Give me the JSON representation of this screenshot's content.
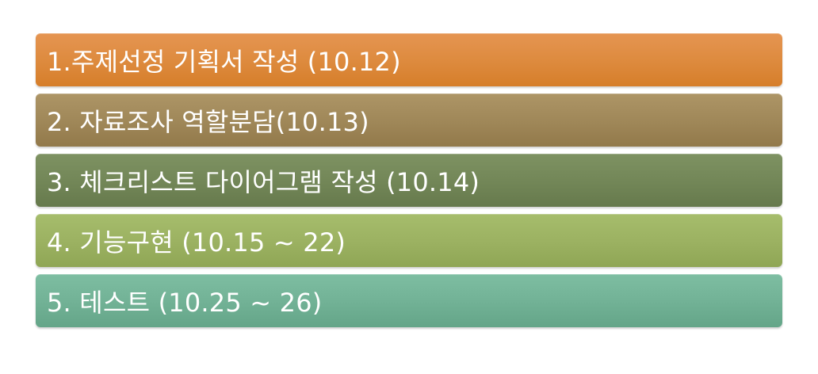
{
  "steps": [
    {
      "label": "1.주제선정 기획서 작성 (10.12)",
      "color": "#dd8a3d"
    },
    {
      "label": "2. 자료조사 역할분담(10.13)",
      "color": "#9f8758"
    },
    {
      "label": "3. 체크리스트 다이어그램 작성 (10.14)",
      "color": "#728657"
    },
    {
      "label": "4. 기능구현 (10.15 ~ 22)",
      "color": "#9bb161"
    },
    {
      "label": "5. 테스트 (10.25 ~ 26)",
      "color": "#71b195"
    }
  ]
}
